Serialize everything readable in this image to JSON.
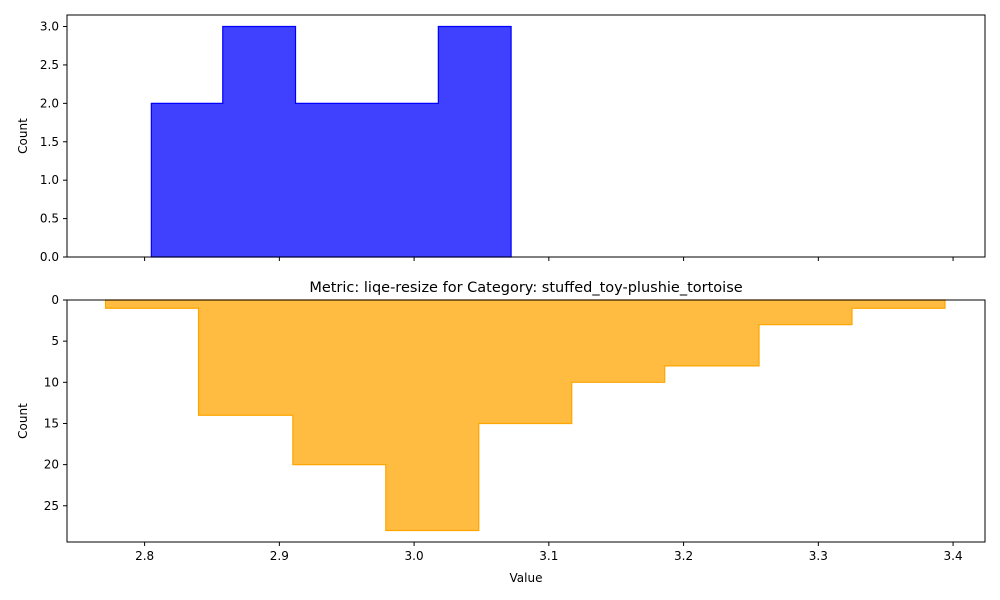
{
  "chart_data": [
    {
      "type": "histogram",
      "title": "",
      "xlabel": "",
      "ylabel": "Count",
      "xlim": [
        2.7424,
        3.4237
      ],
      "ylim": [
        0,
        3.15
      ],
      "y_inverted": false,
      "x_tick_labels_shown": false,
      "xticks": [
        2.8,
        2.9,
        3.0,
        3.1,
        3.2,
        3.3,
        3.4
      ],
      "yticks": [
        0.0,
        0.5,
        1.0,
        1.5,
        2.0,
        2.5,
        3.0
      ],
      "ytick_labels": [
        "0.0",
        "0.5",
        "1.0",
        "1.5",
        "2.0",
        "2.5",
        "3.0"
      ],
      "series": [
        {
          "color": "#0000ff",
          "fill_opacity": 0.75,
          "bin_edges": [
            2.805,
            2.858,
            2.912,
            2.965,
            3.018,
            3.072
          ],
          "counts": [
            2,
            3,
            2,
            2,
            3
          ]
        }
      ]
    },
    {
      "type": "histogram",
      "title": "Metric: liqe-resize for Category: stuffed_toy-plushie_tortoise",
      "xlabel": "Value",
      "ylabel": "Count",
      "xlim": [
        2.7424,
        3.4237
      ],
      "ylim": [
        0,
        29.4
      ],
      "y_inverted": true,
      "x_tick_labels_shown": true,
      "xticks": [
        2.8,
        2.9,
        3.0,
        3.1,
        3.2,
        3.3,
        3.4
      ],
      "xtick_labels": [
        "2.8",
        "2.9",
        "3.0",
        "3.1",
        "3.2",
        "3.3",
        "3.4"
      ],
      "yticks": [
        0,
        5,
        10,
        15,
        20,
        25
      ],
      "ytick_labels": [
        "0",
        "5",
        "10",
        "15",
        "20",
        "25"
      ],
      "series": [
        {
          "color": "#ffa500",
          "fill_opacity": 0.75,
          "bin_edges": [
            2.771,
            2.84,
            2.91,
            2.979,
            3.048,
            3.117,
            3.186,
            3.256,
            3.325,
            3.394
          ],
          "counts": [
            1,
            14,
            20,
            28,
            15,
            10,
            8,
            3,
            1
          ]
        }
      ]
    }
  ]
}
